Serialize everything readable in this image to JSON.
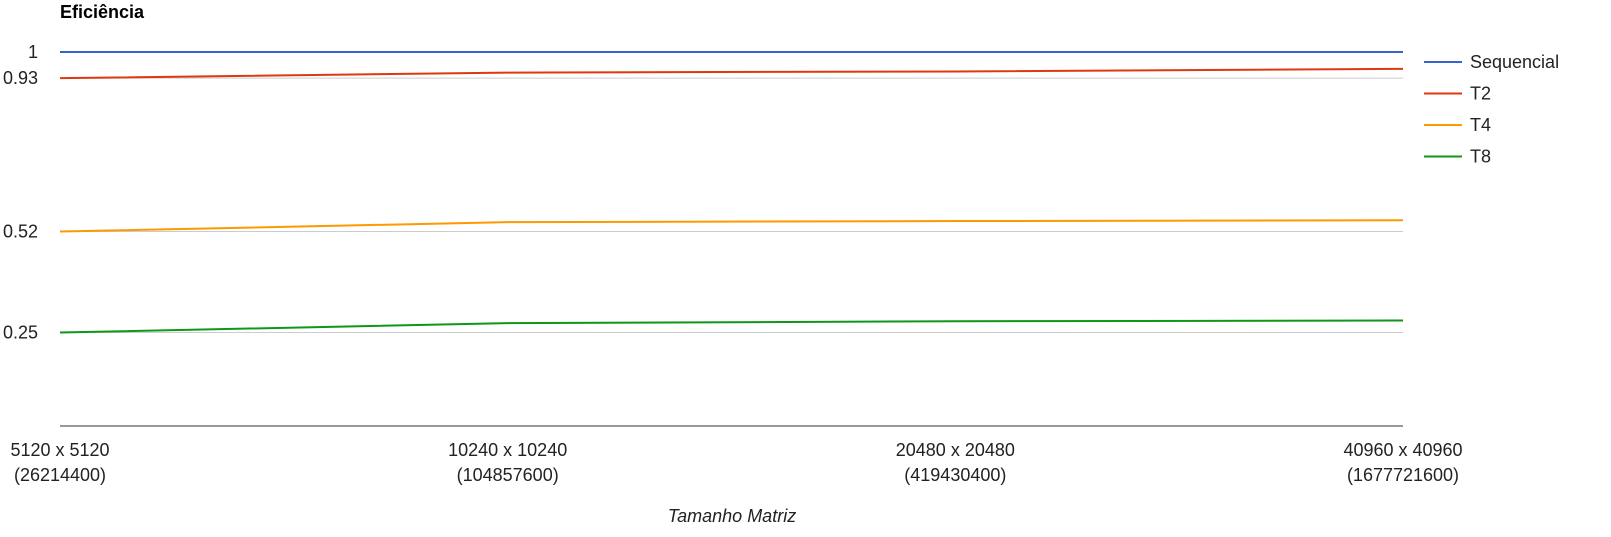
{
  "chart_data": {
    "type": "line",
    "title": "Eficiência",
    "xlabel": "Tamanho Matriz",
    "ylabel": "",
    "ylim": [
      0,
      1
    ],
    "grid": true,
    "legend_position": "right",
    "categories": [
      [
        "5120 x 5120",
        "(26214400)"
      ],
      [
        "10240 x 10240",
        "(104857600)"
      ],
      [
        "20480 x 20480",
        "(419430400)"
      ],
      [
        "40960 x 40960",
        "(1677721600)"
      ]
    ],
    "y_ticks": [
      {
        "value": 1,
        "label": "1"
      },
      {
        "value": 0.93,
        "label": "0.93"
      },
      {
        "value": 0.52,
        "label": "0.52"
      },
      {
        "value": 0.25,
        "label": "0.25"
      }
    ],
    "series": [
      {
        "name": "Sequencial",
        "color": "#3366cc",
        "values": [
          1.0,
          1.0,
          1.0,
          1.0
        ]
      },
      {
        "name": "T2",
        "color": "#dc3912",
        "values": [
          0.93,
          0.945,
          0.948,
          0.955
        ]
      },
      {
        "name": "T4",
        "color": "#ff9900",
        "values": [
          0.52,
          0.545,
          0.548,
          0.55
        ]
      },
      {
        "name": "T8",
        "color": "#109618",
        "values": [
          0.25,
          0.275,
          0.28,
          0.282
        ]
      }
    ]
  }
}
